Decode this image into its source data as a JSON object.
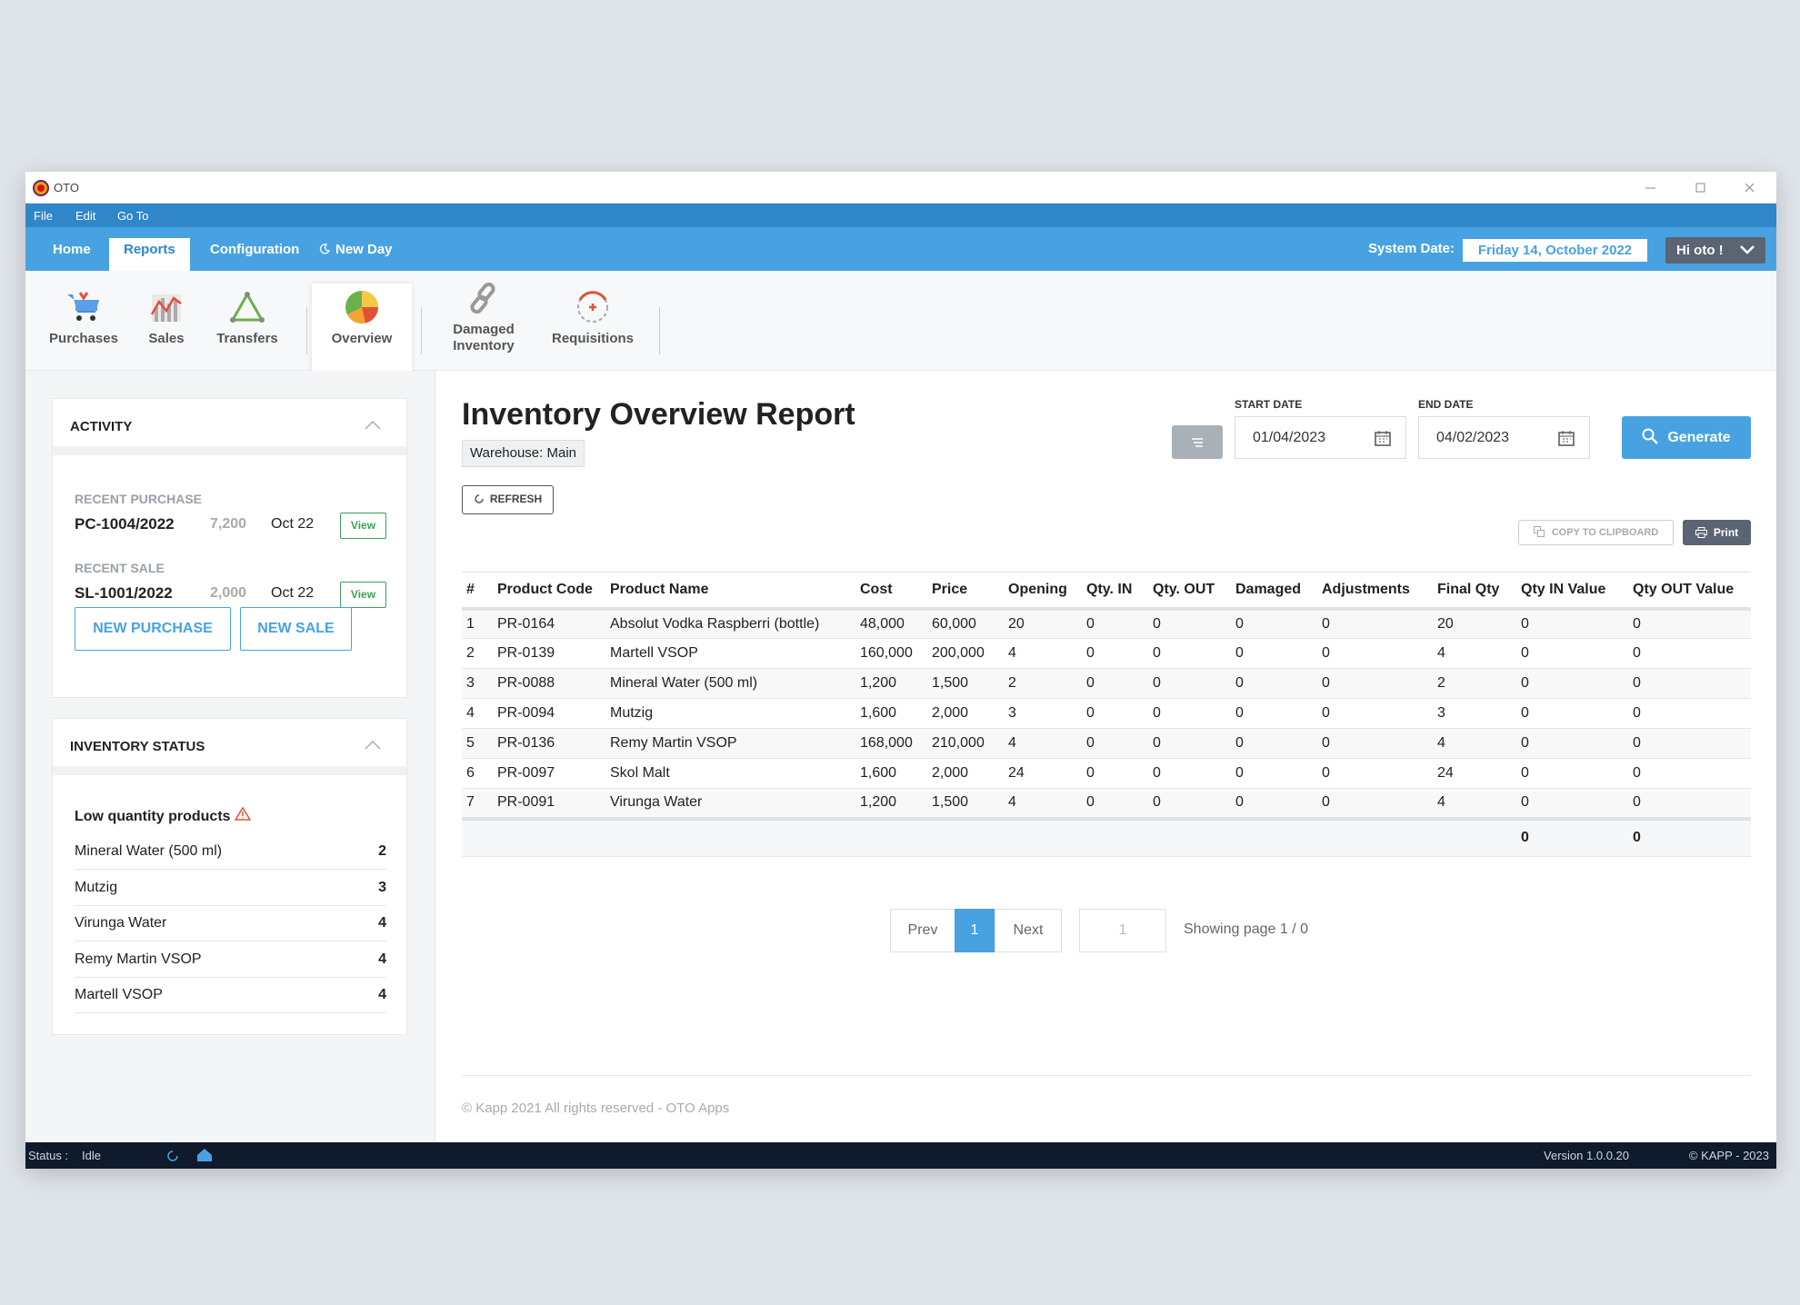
{
  "window": {
    "title": "OTO",
    "menu": [
      "File",
      "Edit",
      "Go To"
    ]
  },
  "nav": {
    "tabs": [
      "Home",
      "Reports",
      "Configuration",
      "New Day"
    ],
    "active_tab": 1,
    "system_date_label": "System Date:",
    "system_date": "Friday 14, October 2022",
    "user": "Hi oto !"
  },
  "ribbon": {
    "items": [
      "Purchases",
      "Sales",
      "Transfers",
      "Overview",
      "Damaged Inventory",
      "Requisitions"
    ],
    "active": 3
  },
  "activity": {
    "title": "ACTIVITY",
    "recent_purchase": {
      "label": "RECENT PURCHASE",
      "code": "PC-1004/2022",
      "amount": "7,200",
      "date": "Oct 22",
      "action": "View"
    },
    "recent_sale": {
      "label": "RECENT SALE",
      "code": "SL-1001/2022",
      "amount": "2,000",
      "date": "Oct 22",
      "action": "View"
    },
    "buttons": [
      "NEW PURCHASE",
      "NEW SALE"
    ]
  },
  "inventory_status": {
    "title": "INVENTORY STATUS",
    "subtitle": "Low quantity products",
    "items": [
      {
        "name": "Mineral Water (500 ml)",
        "qty": 2
      },
      {
        "name": "Mutzig",
        "qty": 3
      },
      {
        "name": "Virunga Water",
        "qty": 4
      },
      {
        "name": "Remy Martin VSOP",
        "qty": 4
      },
      {
        "name": "Martell VSOP",
        "qty": 4
      }
    ]
  },
  "report": {
    "title": "Inventory Overview Report",
    "warehouse": "Warehouse: Main",
    "refresh": "REFRESH",
    "start_date_label": "START DATE",
    "start_date": "01/04/2023",
    "end_date_label": "END DATE",
    "end_date": "04/02/2023",
    "generate": "Generate",
    "copy": "COPY TO CLIPBOARD",
    "print": "Print"
  },
  "table": {
    "columns": [
      "#",
      "Product Code",
      "Product Name",
      "Cost",
      "Price",
      "Opening",
      "Qty. IN",
      "Qty. OUT",
      "Damaged",
      "Adjustments",
      "Final Qty",
      "Qty IN Value",
      "Qty OUT Value"
    ],
    "rows": [
      [
        1,
        "PR-0164",
        "Absolut Vodka Raspberri (bottle)",
        "48,000",
        "60,000",
        20,
        0,
        0,
        0,
        0,
        20,
        0,
        0
      ],
      [
        2,
        "PR-0139",
        "Martell VSOP",
        "160,000",
        "200,000",
        4,
        0,
        0,
        0,
        0,
        4,
        0,
        0
      ],
      [
        3,
        "PR-0088",
        "Mineral Water (500 ml)",
        "1,200",
        "1,500",
        2,
        0,
        0,
        0,
        0,
        2,
        0,
        0
      ],
      [
        4,
        "PR-0094",
        "Mutzig",
        "1,600",
        "2,000",
        3,
        0,
        0,
        0,
        0,
        3,
        0,
        0
      ],
      [
        5,
        "PR-0136",
        "Remy Martin VSOP",
        "168,000",
        "210,000",
        4,
        0,
        0,
        0,
        0,
        4,
        0,
        0
      ],
      [
        6,
        "PR-0097",
        "Skol Malt",
        "1,600",
        "2,000",
        24,
        0,
        0,
        0,
        0,
        24,
        0,
        0
      ],
      [
        7,
        "PR-0091",
        "Virunga Water",
        "1,200",
        "1,500",
        4,
        0,
        0,
        0,
        0,
        4,
        0,
        0
      ]
    ],
    "totals": [
      0,
      0
    ]
  },
  "pagination": {
    "prev": "Prev",
    "current": 1,
    "next": "Next",
    "page_input": 1,
    "info": "Showing page 1 / 0"
  },
  "footer": "© Kapp 2021 All rights reserved - OTO Apps",
  "status_bar": {
    "label": "Status :",
    "state": "Idle",
    "version": "Version 1.0.0.20",
    "copyright": "© KAPP - 2023"
  }
}
